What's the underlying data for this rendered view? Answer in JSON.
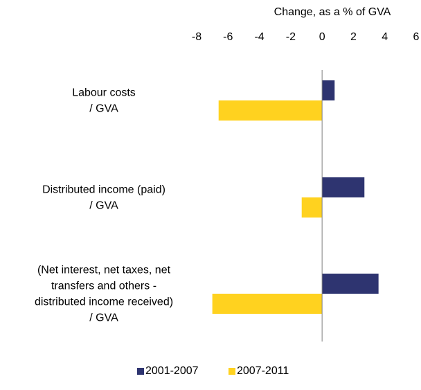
{
  "chart_data": {
    "type": "bar",
    "orientation": "horizontal",
    "xlabel": "Change, as a % of GVA",
    "xlim": [
      -8,
      6
    ],
    "xticks": [
      -8,
      -6,
      -4,
      -2,
      0,
      2,
      4,
      6
    ],
    "categories": [
      [
        "Labour costs",
        "/ GVA"
      ],
      [
        "Distributed income (paid)",
        "/ GVA"
      ],
      [
        "(Net interest, net taxes, net",
        "transfers and others -",
        "distributed income received)",
        "/ GVA"
      ]
    ],
    "series": [
      {
        "name": "2001-2007",
        "color": "#2E3470",
        "values": [
          0.8,
          2.7,
          3.6
        ]
      },
      {
        "name": "2007-2011",
        "color": "#FFD21F",
        "values": [
          -6.6,
          -1.3,
          -7.0
        ]
      }
    ],
    "grid": false,
    "axis_position": "top",
    "legend_position": "bottom"
  }
}
